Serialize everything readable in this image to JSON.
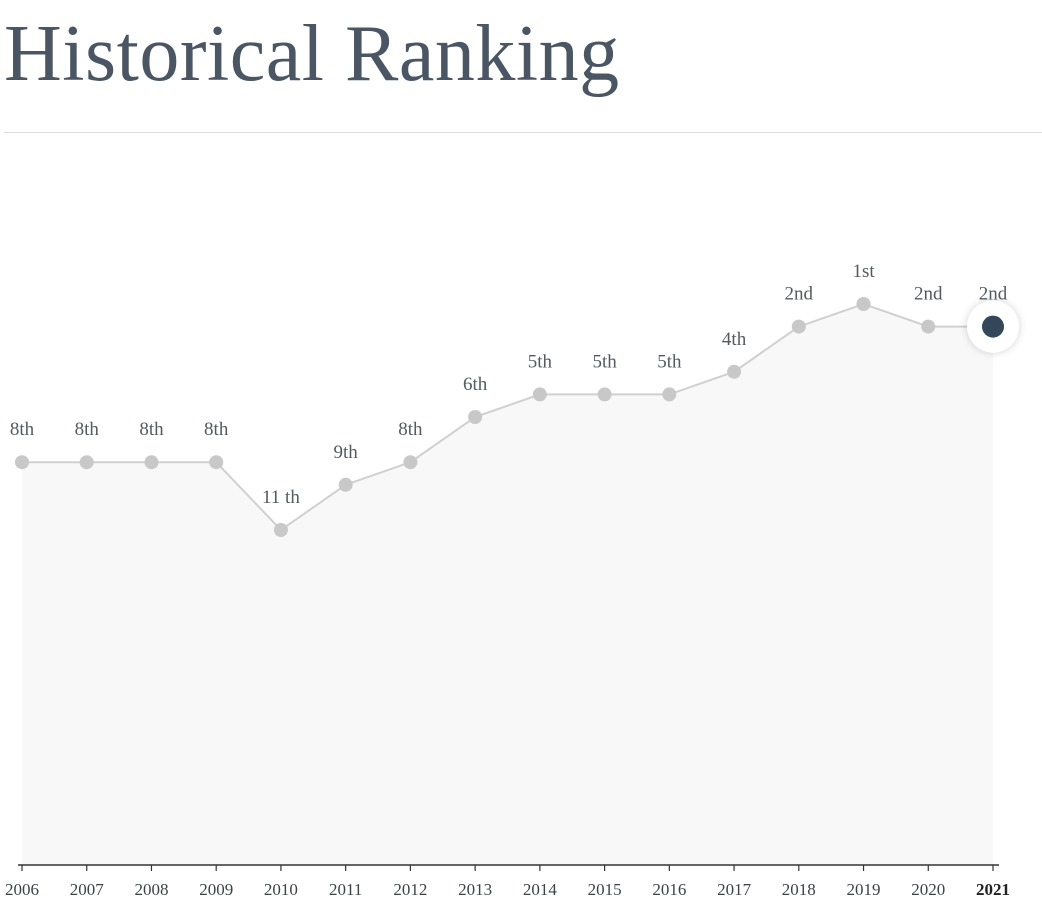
{
  "page": {
    "title": "Historical Ranking"
  },
  "chart_data": {
    "type": "line",
    "x": [
      "2006",
      "2007",
      "2008",
      "2009",
      "2010",
      "2011",
      "2012",
      "2013",
      "2014",
      "2015",
      "2016",
      "2017",
      "2018",
      "2019",
      "2020",
      "2021"
    ],
    "values": [
      8,
      8,
      8,
      8,
      11,
      9,
      8,
      6,
      5,
      5,
      5,
      4,
      2,
      1,
      2,
      2
    ],
    "labels": [
      "8th",
      "8th",
      "8th",
      "8th",
      "11 th",
      "9th",
      "8th",
      "6th",
      "5th",
      "5th",
      "5th",
      "4th",
      "2nd",
      "1st",
      "2nd",
      "2nd"
    ],
    "highlight_index": 15,
    "y_inverted": true,
    "grid": false,
    "colors": {
      "line": "#d0d0d0",
      "point": "#c8c8c8",
      "highlight": "#34465a",
      "area": "#f8f8f9",
      "axis": "#333333"
    }
  }
}
